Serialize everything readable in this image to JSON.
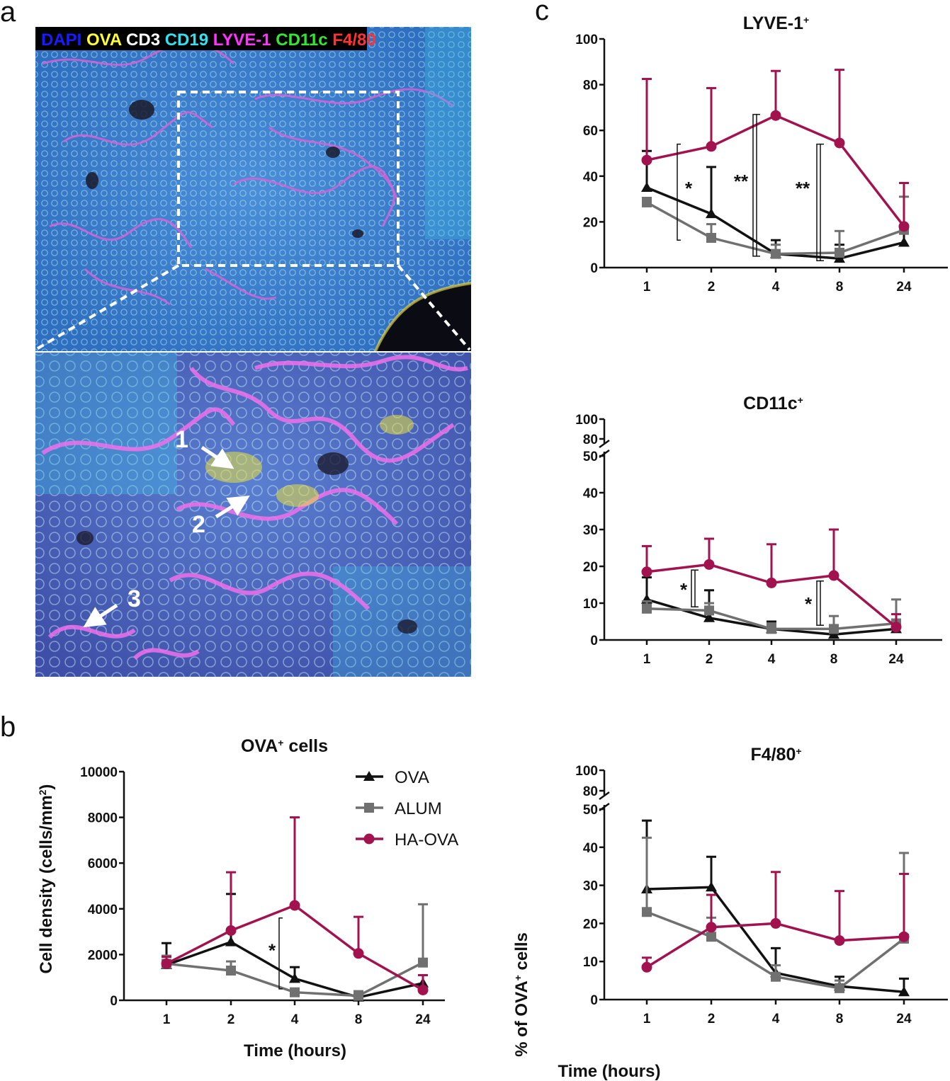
{
  "panel_labels": {
    "a": "a",
    "b": "b",
    "c": "c"
  },
  "micrograph": {
    "channels": [
      {
        "name": "DAPI",
        "color": "#1a1aff"
      },
      {
        "name": "OVA",
        "color": "#ffff33"
      },
      {
        "name": "CD3",
        "color": "#ffffff"
      },
      {
        "name": "CD19",
        "color": "#33e0f0"
      },
      {
        "name": "LYVE-1",
        "color": "#ff33ff"
      },
      {
        "name": "CD11c",
        "color": "#33e633"
      },
      {
        "name": "F4/80",
        "color": "#ff3333"
      }
    ],
    "arrow_labels": [
      "1",
      "2",
      "3"
    ]
  },
  "colors": {
    "OVA": "#111111",
    "ALUM": "#707070",
    "HA-OVA": "#a2124f"
  },
  "chart_data": [
    {
      "id": "b",
      "type": "line",
      "title": "OVA",
      "title_sup": "+",
      "title_suffix": " cells",
      "xlabel": "Time (hours)",
      "ylabel": "Cell density (cells/mm",
      "ylabel_sup": "2",
      "ylabel_end": ")",
      "categories": [
        "1",
        "2",
        "4",
        "8",
        "24"
      ],
      "ylim": [
        0,
        10000
      ],
      "yticks": [
        0,
        2000,
        4000,
        6000,
        8000,
        10000
      ],
      "legend": [
        "OVA",
        "ALUM",
        "HA-OVA"
      ],
      "series": [
        {
          "name": "OVA",
          "values": [
            1550,
            2550,
            950,
            130,
            750
          ],
          "err": [
            950,
            2100,
            500,
            150,
            350
          ]
        },
        {
          "name": "ALUM",
          "values": [
            1600,
            1300,
            350,
            200,
            1650
          ],
          "err": [
            350,
            400,
            150,
            200,
            2550
          ]
        },
        {
          "name": "HA-OVA",
          "values": [
            1600,
            3050,
            4150,
            2050,
            450
          ],
          "err": [
            300,
            2550,
            3850,
            1600,
            650
          ]
        }
      ],
      "annotations": [
        {
          "text": "*",
          "between": [
            "2",
            "4"
          ]
        }
      ]
    },
    {
      "id": "c1",
      "type": "line",
      "title": "LYVE-1",
      "title_sup": "+",
      "categories": [
        "1",
        "2",
        "4",
        "8",
        "24"
      ],
      "ylim": [
        0,
        100
      ],
      "yticks": [
        0,
        20,
        40,
        60,
        80,
        100
      ],
      "series": [
        {
          "name": "OVA",
          "values": [
            35,
            23.5,
            6,
            4,
            11
          ],
          "err": [
            16,
            20.5,
            6,
            6,
            4
          ]
        },
        {
          "name": "ALUM",
          "values": [
            28.5,
            13,
            6,
            6.5,
            16.5
          ],
          "err": [
            2,
            6,
            4,
            9.5,
            14.5
          ]
        },
        {
          "name": "HA-OVA",
          "values": [
            47,
            53,
            66.5,
            54.5,
            18
          ],
          "err": [
            35.5,
            25.5,
            19.5,
            32,
            19
          ]
        }
      ],
      "annotations": [
        {
          "text": "*",
          "between": [
            "1",
            "2"
          ]
        },
        {
          "text": "**",
          "between": [
            "2",
            "4"
          ]
        },
        {
          "text": "**",
          "between": [
            "4",
            "8"
          ]
        }
      ]
    },
    {
      "id": "c2",
      "type": "line",
      "title": "CD11c",
      "title_sup": "+",
      "categories": [
        "1",
        "2",
        "4",
        "8",
        "24"
      ],
      "ylim": [
        0,
        50
      ],
      "yticks": [
        0,
        10,
        20,
        30,
        40,
        50
      ],
      "break_ticks": [
        80,
        100
      ],
      "series": [
        {
          "name": "OVA",
          "values": [
            11,
            6,
            3,
            1.5,
            3
          ],
          "err": [
            6,
            7.5,
            2,
            2,
            2.5
          ]
        },
        {
          "name": "ALUM",
          "values": [
            8.5,
            8,
            3,
            3,
            4.5
          ],
          "err": [
            2,
            2,
            1.5,
            3.5,
            6.5
          ]
        },
        {
          "name": "HA-OVA",
          "values": [
            18.5,
            20.5,
            15.5,
            17.5,
            3.5
          ],
          "err": [
            7,
            7,
            10.5,
            12.5,
            3.5
          ]
        }
      ],
      "annotations": [
        {
          "text": "*",
          "between": [
            "1",
            "2"
          ]
        },
        {
          "text": "*",
          "between": [
            "4",
            "8"
          ]
        }
      ]
    },
    {
      "id": "c3",
      "type": "line",
      "title": "F4/80",
      "title_sup": "+",
      "categories": [
        "1",
        "2",
        "4",
        "8",
        "24"
      ],
      "ylim": [
        0,
        50
      ],
      "yticks": [
        0,
        10,
        20,
        30,
        40,
        50
      ],
      "break_ticks": [
        80,
        100
      ],
      "xlabel": "Time (hours)",
      "ylabel": "% of OVA",
      "ylabel_sup": "+",
      "ylabel_end": " cells",
      "series": [
        {
          "name": "OVA",
          "values": [
            29,
            29.5,
            7,
            3.5,
            2
          ],
          "err": [
            18,
            8,
            6.5,
            2.5,
            3.5
          ]
        },
        {
          "name": "ALUM",
          "values": [
            23,
            16.5,
            6,
            3,
            16
          ],
          "err": [
            19.5,
            5,
            3,
            2,
            22.5
          ]
        },
        {
          "name": "HA-OVA",
          "values": [
            8.5,
            19,
            20,
            15.5,
            16.5
          ],
          "err": [
            2.5,
            8.5,
            13.5,
            13,
            16.5
          ]
        }
      ]
    }
  ]
}
